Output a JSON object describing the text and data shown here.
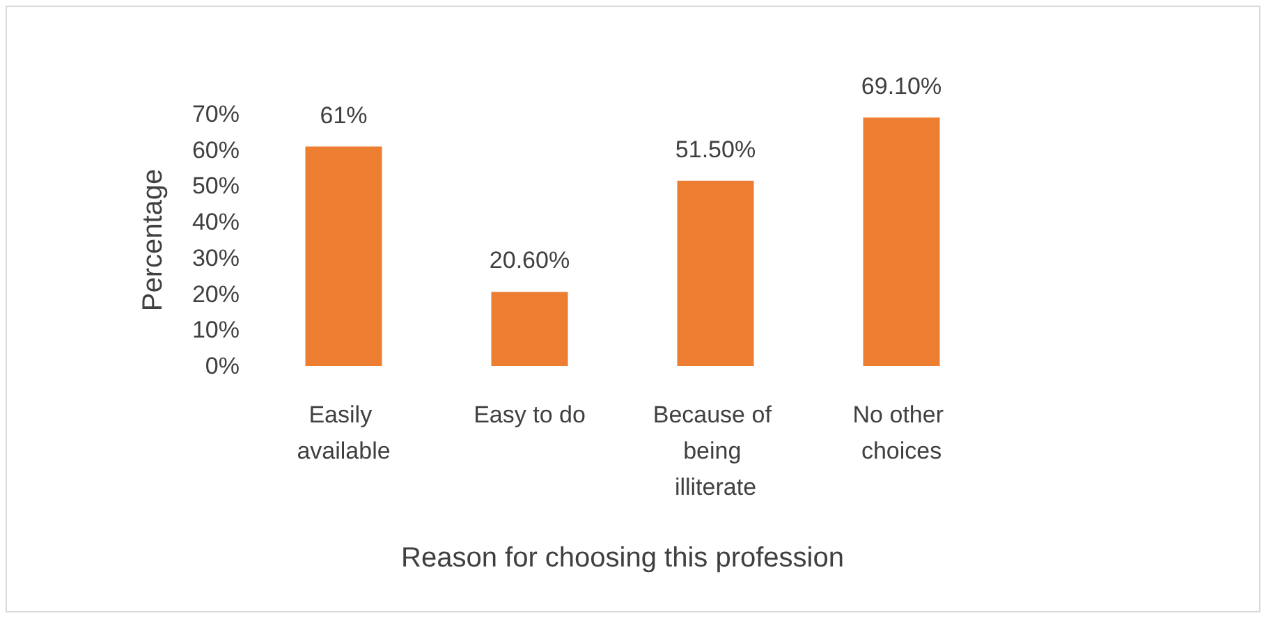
{
  "chart_data": {
    "type": "bar",
    "xlabel": "Reason for choosing this profession",
    "ylabel": "Percentage",
    "categories": [
      "Easily available",
      "Easy to do",
      "Because of being illiterate",
      "No other choices"
    ],
    "values": [
      61,
      20.6,
      51.5,
      69.1
    ],
    "value_labels": [
      "61%",
      "20.60%",
      "51.50%",
      "69.10%"
    ],
    "color": "#ed7d31",
    "ylim": [
      0,
      70
    ],
    "yticks": [
      {
        "value": 0,
        "label": "0%"
      },
      {
        "value": 10,
        "label": "10%"
      },
      {
        "value": 20,
        "label": "20%"
      },
      {
        "value": 30,
        "label": "30%"
      },
      {
        "value": 40,
        "label": "40%"
      },
      {
        "value": 50,
        "label": "50%"
      },
      {
        "value": 60,
        "label": "60%"
      },
      {
        "value": 70,
        "label": "70%"
      }
    ],
    "grid": false
  }
}
